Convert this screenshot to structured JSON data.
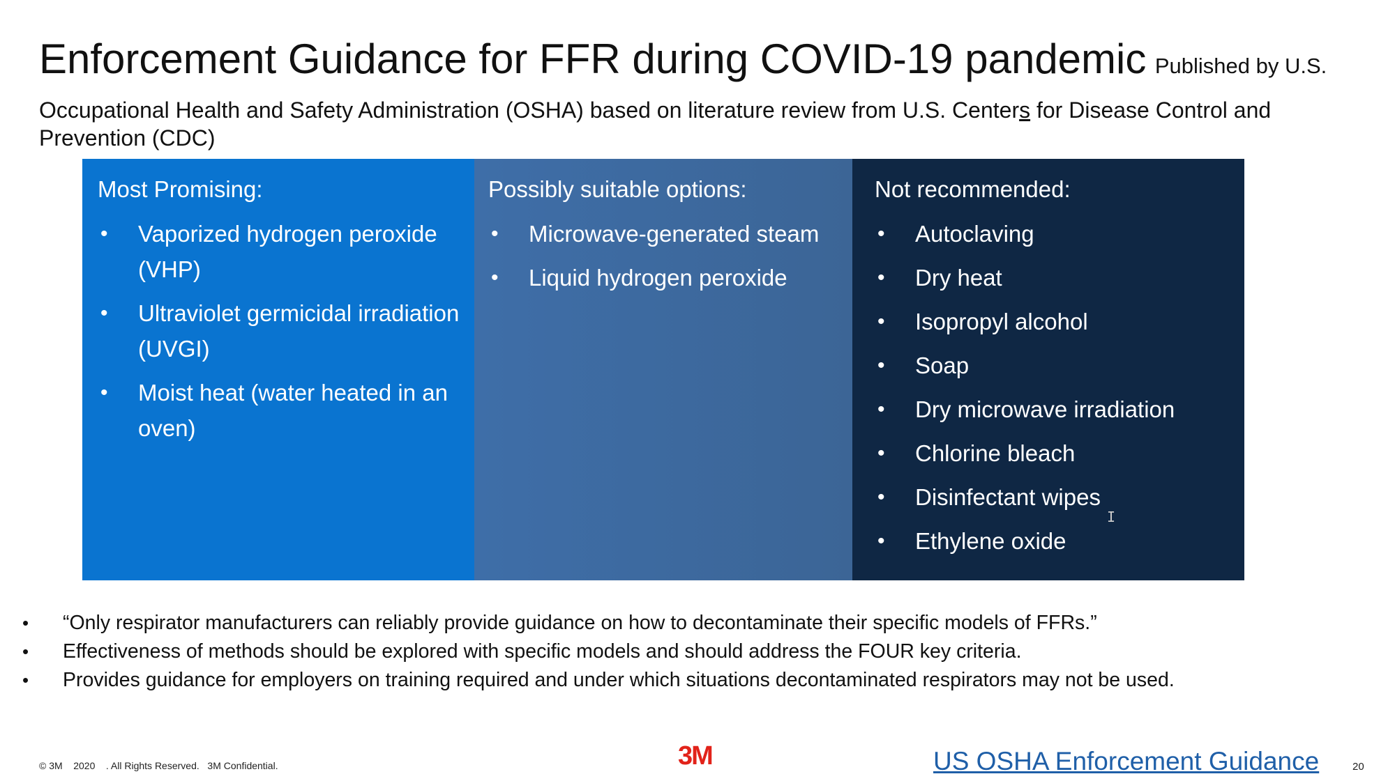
{
  "slide": {
    "title": "Enforcement Guidance for FFR during COVID-19 pandemic",
    "subtitle_lead": "Published by U.S.",
    "subtitle_part1": "Occupational Health and Safety Administration (OSHA) based on literature review from U.S. Center",
    "subtitle_underlined": "s",
    "subtitle_part2": " for Disease Control and Prevention (CDC)"
  },
  "panels": [
    {
      "heading": "Most Promising:",
      "color": "#0A74D0",
      "items": [
        "Vaporized hydrogen peroxide (VHP)",
        "Ultraviolet germicidal irradiation (UVGI)",
        "Moist heat (water heated in an oven)"
      ]
    },
    {
      "heading": "Possibly suitable options:",
      "color": "#3E6EA8",
      "items": [
        "Microwave-generated steam",
        "Liquid hydrogen peroxide"
      ]
    },
    {
      "heading": "Not recommended:",
      "color": "#0F2744",
      "items": [
        "Autoclaving",
        "Dry heat",
        "Isopropyl alcohol",
        "Soap",
        "Dry microwave irradiation",
        "Chlorine bleach",
        "Disinfectant wipes",
        "Ethylene oxide"
      ]
    }
  ],
  "bullet_glyph": "•",
  "notes": [
    "“Only respirator manufacturers can reliably provide guidance on how to decontaminate their specific models of FFRs.”",
    "Effectiveness of methods should be explored with specific models and should address the FOUR key criteria.",
    "Provides guidance for employers on training required and under which situations decontaminated respirators may not be used."
  ],
  "footer": {
    "copyright": "© 3M    2020    . All Rights Reserved.   3M Confidential.",
    "logo_text": "3M",
    "link_text": "US OSHA Enforcement Guidance",
    "page_number": "20"
  },
  "icons": {
    "cursor": "text-cursor-icon"
  }
}
